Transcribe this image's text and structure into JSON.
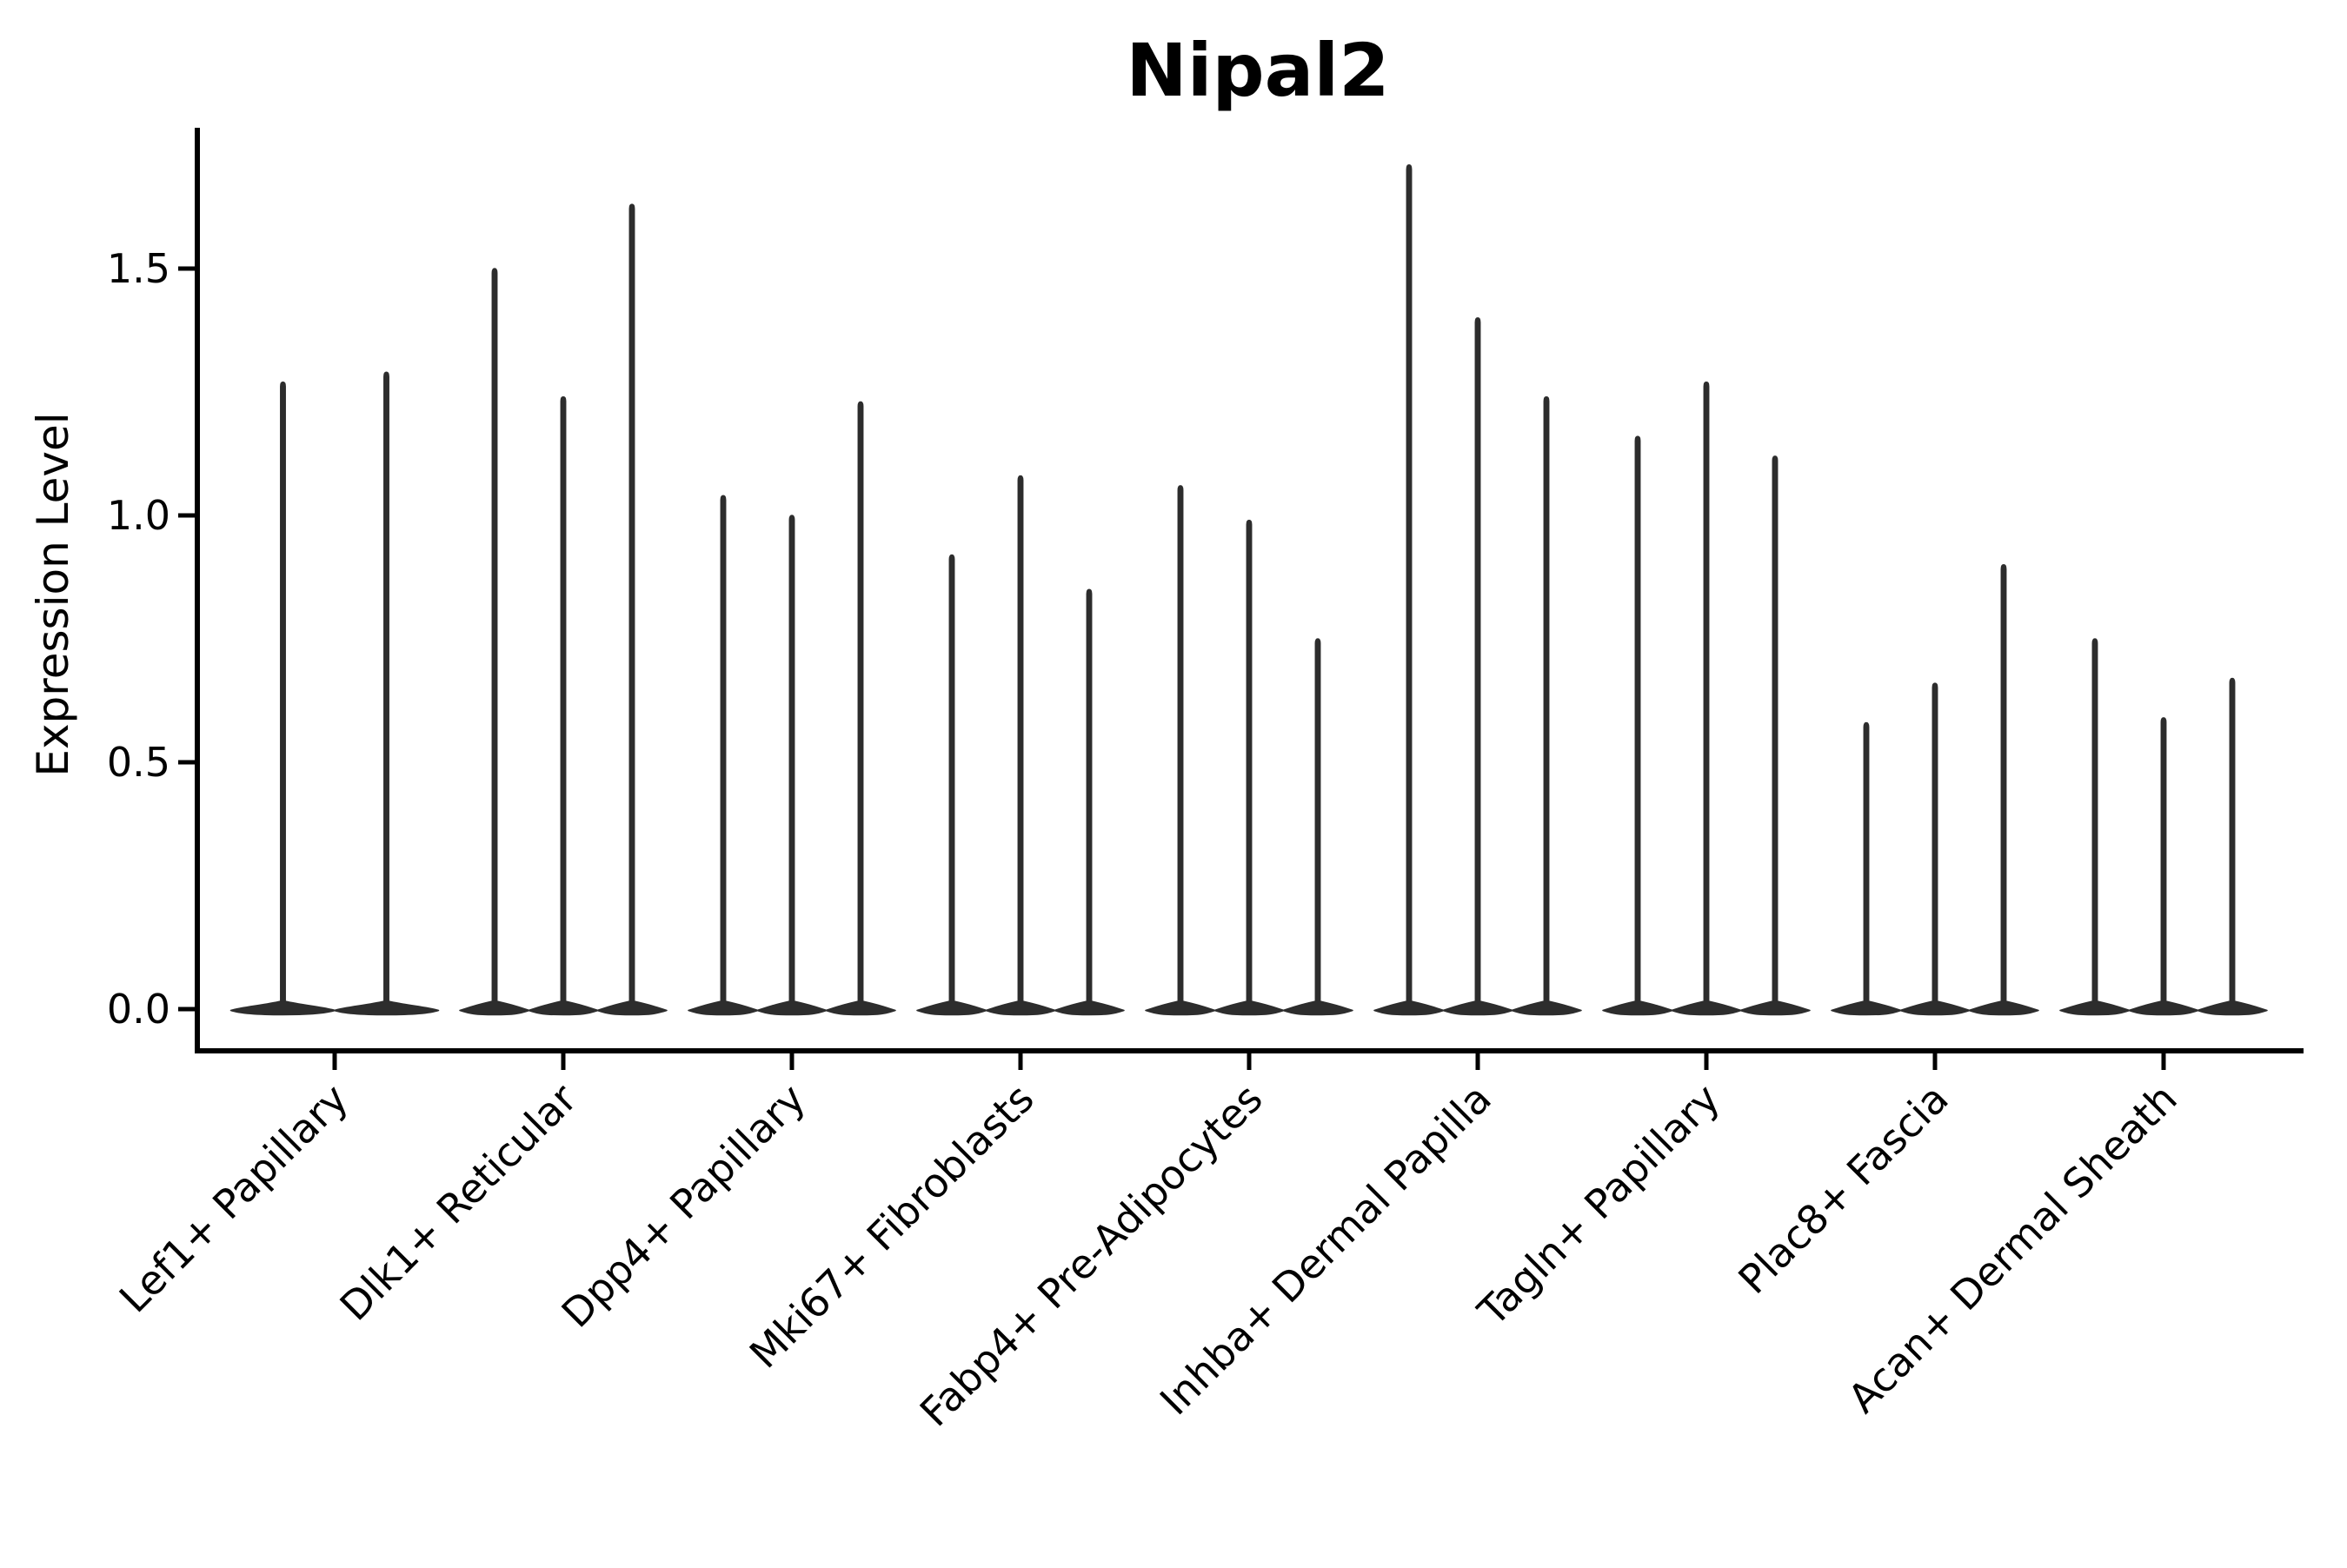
{
  "figure": {
    "background": "#ffffff",
    "title": "Nipal2"
  },
  "chart_data": {
    "type": "violin",
    "title": "Nipal2",
    "xlabel": "",
    "ylabel": "Expression Level",
    "ylim": [
      0,
      1.78
    ],
    "yticks": [
      0,
      0.5,
      1.0,
      1.5
    ],
    "ytick_labels": [
      "0.0",
      "0.5",
      "1.0",
      "1.5"
    ],
    "grid": false,
    "legend": "none",
    "violin_color": "#2d2d2d",
    "axis_color": "#000000",
    "categories": [
      "Lef1+ Papillary",
      "Dlk1+ Reticular",
      "Dpp4+ Papillary",
      "Mki67+ Fibroblasts",
      "Fabp4+ Pre-Adipocytes",
      "Inhba+ Dermal Papilla",
      "Tagln+ Papillary",
      "Plac8+ Fascia",
      "Acan+ Dermal Sheath"
    ],
    "groups": [
      {
        "category": "Lef1+ Papillary",
        "violin_max": [
          1.27,
          1.29
        ]
      },
      {
        "category": "Dlk1+ Reticular",
        "violin_max": [
          1.5,
          1.24,
          1.63
        ]
      },
      {
        "category": "Dpp4+ Papillary",
        "violin_max": [
          1.04,
          1.0,
          1.23
        ]
      },
      {
        "category": "Mki67+ Fibroblasts",
        "violin_max": [
          0.92,
          1.08,
          0.85
        ]
      },
      {
        "category": "Fabp4+ Pre-Adipocytes",
        "violin_max": [
          1.06,
          0.99,
          0.75
        ]
      },
      {
        "category": "Inhba+ Dermal Papilla",
        "violin_max": [
          1.71,
          1.4,
          1.24
        ]
      },
      {
        "category": "Tagln+ Papillary",
        "violin_max": [
          1.16,
          1.27,
          1.12
        ]
      },
      {
        "category": "Plac8+ Fascia",
        "violin_max": [
          0.58,
          0.66,
          0.9
        ]
      },
      {
        "category": "Acan+ Dermal Sheath",
        "violin_max": [
          0.75,
          0.59,
          0.67
        ]
      }
    ],
    "baseline_value": 0,
    "note": "Expression concentrated at 0: each violin is a wide flat base at 0 with a thin spike rising to its maximum."
  }
}
